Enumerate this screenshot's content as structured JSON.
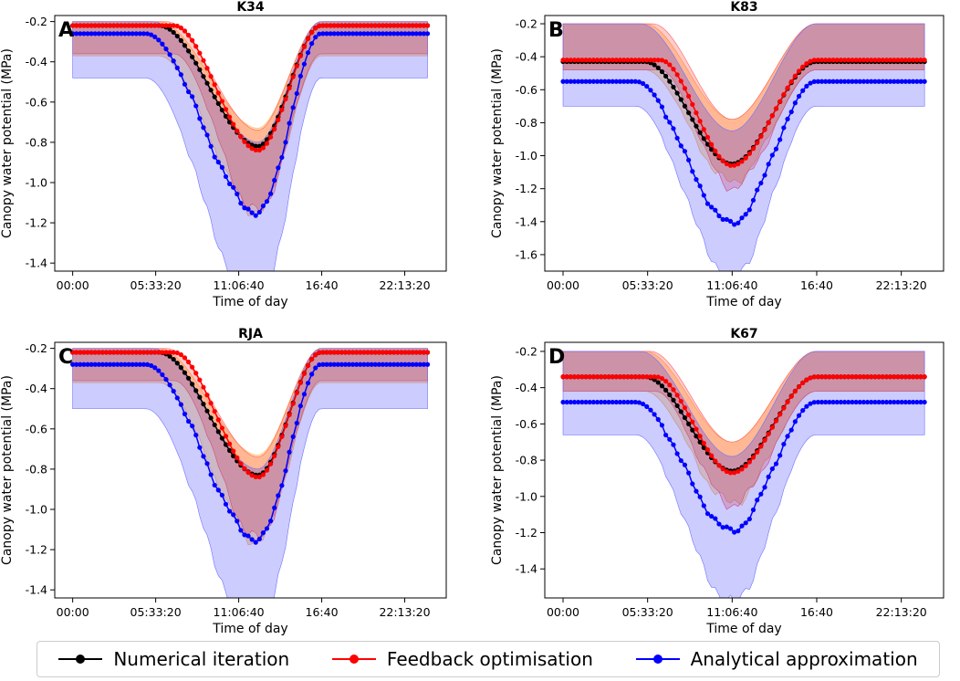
{
  "chart_data": [
    {
      "type": "line",
      "panel_letter": "A",
      "title": "K34",
      "xlabel": "Time of day",
      "ylabel": "Canopy water potential (MPa)",
      "xticks": [
        "00:00",
        "05:33:20",
        "11:06:40",
        "16:40",
        "22:13:20"
      ],
      "xtick_values_hours": [
        0,
        5.5556,
        11.1111,
        16.6667,
        22.2222
      ],
      "xlim_hours": [
        -1.2,
        25
      ],
      "ylim": [
        -1.44,
        -0.17
      ],
      "yticks": [
        -0.2,
        -0.4,
        -0.6,
        -0.8,
        -1.0,
        -1.2,
        -1.4
      ],
      "ytick_labels": [
        "-0.2",
        "-0.4",
        "-0.6",
        "-0.8",
        "-1.0",
        "-1.2",
        "-1.4"
      ],
      "profile": {
        "t_drop_start": 5.8,
        "t_drop_mid": 8.6,
        "t_min": 12.4,
        "t_rise_end": 16.6,
        "red_lag": 1.0,
        "blue_lead": 0.9
      },
      "series": [
        {
          "name": "Numerical iteration",
          "color": "#000000",
          "baseline": -0.22,
          "min": -0.82,
          "band_upper": -0.2,
          "band_lower_offset": -0.15,
          "band_upper_min": -0.73
        },
        {
          "name": "Feedback optimisation",
          "color": "#ff0000",
          "baseline": -0.22,
          "min": -0.84,
          "band_upper": -0.2,
          "band_lower_offset": -0.14,
          "band_upper_min": -0.74
        },
        {
          "name": "Analytical approximation",
          "color": "#0000ff",
          "baseline": -0.26,
          "min": -1.15,
          "band_upper": -0.2,
          "band_lower_offset": -0.22,
          "band_upper_min": -0.8
        }
      ]
    },
    {
      "type": "line",
      "panel_letter": "B",
      "title": "K83",
      "xlabel": "Time of day",
      "ylabel": "Canopy water potential (MPa)",
      "xticks": [
        "00:00",
        "05:33:20",
        "11:06:40",
        "16:40",
        "22:13:20"
      ],
      "xtick_values_hours": [
        0,
        5.5556,
        11.1111,
        16.6667,
        22.2222
      ],
      "xlim_hours": [
        -1.2,
        25
      ],
      "ylim": [
        -1.7,
        -0.15
      ],
      "yticks": [
        -0.2,
        -0.4,
        -0.6,
        -0.8,
        -1.0,
        -1.2,
        -1.4,
        -1.6
      ],
      "ytick_labels": [
        "-0.2",
        "-0.4",
        "-0.6",
        "-0.8",
        "-1.0",
        "-1.2",
        "-1.4",
        "-1.6"
      ],
      "profile": {
        "t_drop_start": 5.4,
        "t_drop_mid": 7.8,
        "t_min": 11.1,
        "t_rise_end": 16.6,
        "red_lag": 1.0,
        "blue_lead": 0.6
      },
      "series": [
        {
          "name": "Numerical iteration",
          "color": "#000000",
          "baseline": -0.43,
          "min": -1.05,
          "band_upper": -0.2,
          "band_lower_offset": -0.05,
          "band_upper_min": -0.78
        },
        {
          "name": "Feedback optimisation",
          "color": "#ff0000",
          "baseline": -0.42,
          "min": -1.06,
          "band_upper": -0.2,
          "band_lower_offset": -0.06,
          "band_upper_min": -0.78
        },
        {
          "name": "Analytical approximation",
          "color": "#0000ff",
          "baseline": -0.55,
          "min": -1.41,
          "band_upper": -0.2,
          "band_lower_offset": -0.15,
          "band_upper_min": -0.85
        }
      ]
    },
    {
      "type": "line",
      "panel_letter": "C",
      "title": "RJA",
      "xlabel": "Time of day",
      "ylabel": "Canopy water potential (MPa)",
      "xticks": [
        "00:00",
        "05:33:20",
        "11:06:40",
        "16:40",
        "22:13:20"
      ],
      "xtick_values_hours": [
        0,
        5.5556,
        11.1111,
        16.6667,
        22.2222
      ],
      "xlim_hours": [
        -1.2,
        25
      ],
      "ylim": [
        -1.44,
        -0.17
      ],
      "yticks": [
        -0.2,
        -0.4,
        -0.6,
        -0.8,
        -1.0,
        -1.2,
        -1.4
      ],
      "ytick_labels": [
        "-0.2",
        "-0.4",
        "-0.6",
        "-0.8",
        "-1.0",
        "-1.2",
        "-1.4"
      ],
      "profile": {
        "t_drop_start": 5.8,
        "t_drop_mid": 8.6,
        "t_min": 12.4,
        "t_rise_end": 16.6,
        "red_lag": 1.0,
        "blue_lead": 0.9
      },
      "series": [
        {
          "name": "Numerical iteration",
          "color": "#000000",
          "baseline": -0.22,
          "min": -0.83,
          "band_upper": -0.2,
          "band_lower_offset": -0.15,
          "band_upper_min": -0.73
        },
        {
          "name": "Feedback optimisation",
          "color": "#ff0000",
          "baseline": -0.22,
          "min": -0.84,
          "band_upper": -0.2,
          "band_lower_offset": -0.14,
          "band_upper_min": -0.74
        },
        {
          "name": "Analytical approximation",
          "color": "#0000ff",
          "baseline": -0.28,
          "min": -1.15,
          "band_upper": -0.2,
          "band_lower_offset": -0.22,
          "band_upper_min": -0.8
        }
      ]
    },
    {
      "type": "line",
      "panel_letter": "D",
      "title": "K67",
      "xlabel": "Time of day",
      "ylabel": "Canopy water potential (MPa)",
      "xticks": [
        "00:00",
        "05:33:20",
        "11:06:40",
        "16:40",
        "22:13:20"
      ],
      "xtick_values_hours": [
        0,
        5.5556,
        11.1111,
        16.6667,
        22.2222
      ],
      "xlim_hours": [
        -1.2,
        25
      ],
      "ylim": [
        -1.56,
        -0.15
      ],
      "yticks": [
        -0.2,
        -0.4,
        -0.6,
        -0.8,
        -1.0,
        -1.2,
        -1.4
      ],
      "ytick_labels": [
        "-0.2",
        "-0.4",
        "-0.6",
        "-0.8",
        "-1.0",
        "-1.2",
        "-1.4"
      ],
      "profile": {
        "t_drop_start": 5.4,
        "t_drop_mid": 7.8,
        "t_min": 11.1,
        "t_rise_end": 16.6,
        "red_lag": 0.7,
        "blue_lead": 0.6
      },
      "series": [
        {
          "name": "Numerical iteration",
          "color": "#000000",
          "baseline": -0.34,
          "min": -0.86,
          "band_upper": -0.2,
          "band_lower_offset": -0.08,
          "band_upper_min": -0.7
        },
        {
          "name": "Feedback optimisation",
          "color": "#ff0000",
          "baseline": -0.34,
          "min": -0.87,
          "band_upper": -0.2,
          "band_lower_offset": -0.08,
          "band_upper_min": -0.7
        },
        {
          "name": "Analytical approximation",
          "color": "#0000ff",
          "baseline": -0.48,
          "min": -1.19,
          "band_upper": -0.2,
          "band_lower_offset": -0.18,
          "band_upper_min": -0.78
        }
      ]
    }
  ],
  "legend": {
    "entries": [
      {
        "label": "Numerical iteration",
        "color": "#000000"
      },
      {
        "label": "Feedback optimisation",
        "color": "#ff0000"
      },
      {
        "label": "Analytical approximation",
        "color": "#0000ff"
      }
    ]
  }
}
